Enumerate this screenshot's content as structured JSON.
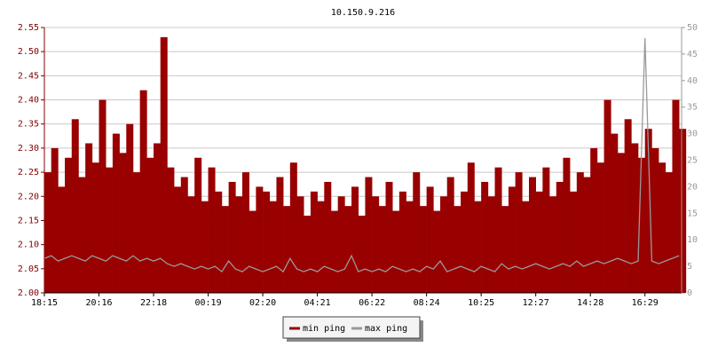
{
  "chart_data": {
    "type": "bar",
    "title": "10.150.9.216",
    "categories": [
      "18:15",
      null,
      null,
      null,
      null,
      null,
      null,
      null,
      "20:16",
      null,
      null,
      null,
      null,
      null,
      null,
      null,
      "22:18",
      null,
      null,
      null,
      null,
      null,
      null,
      null,
      "00:19",
      null,
      null,
      null,
      null,
      null,
      null,
      null,
      "02:20",
      null,
      null,
      null,
      null,
      null,
      null,
      null,
      "04:21",
      null,
      null,
      null,
      null,
      null,
      null,
      null,
      "06:22",
      null,
      null,
      null,
      null,
      null,
      null,
      null,
      "08:24",
      null,
      null,
      null,
      null,
      null,
      null,
      null,
      "10:25",
      null,
      null,
      null,
      null,
      null,
      null,
      null,
      "12:27",
      null,
      null,
      null,
      null,
      null,
      null,
      null,
      "14:28",
      null,
      null,
      null,
      null,
      null,
      null,
      null,
      "16:29",
      null,
      null,
      null,
      null,
      null
    ],
    "series": [
      {
        "name": "min ping",
        "color": "#990000",
        "axis": "y",
        "values": [
          2.25,
          2.3,
          2.22,
          2.28,
          2.36,
          2.24,
          2.31,
          2.27,
          2.4,
          2.26,
          2.33,
          2.29,
          2.35,
          2.25,
          2.42,
          2.28,
          2.31,
          2.53,
          2.26,
          2.22,
          2.24,
          2.2,
          2.28,
          2.19,
          2.26,
          2.21,
          2.18,
          2.23,
          2.2,
          2.25,
          2.17,
          2.22,
          2.21,
          2.19,
          2.24,
          2.18,
          2.27,
          2.2,
          2.16,
          2.21,
          2.19,
          2.23,
          2.17,
          2.2,
          2.18,
          2.22,
          2.16,
          2.24,
          2.2,
          2.18,
          2.23,
          2.17,
          2.21,
          2.19,
          2.25,
          2.18,
          2.22,
          2.17,
          2.2,
          2.24,
          2.18,
          2.21,
          2.27,
          2.19,
          2.23,
          2.2,
          2.26,
          2.18,
          2.22,
          2.25,
          2.19,
          2.24,
          2.21,
          2.26,
          2.2,
          2.23,
          2.28,
          2.21,
          2.25,
          2.24,
          2.3,
          2.27,
          2.4,
          2.33,
          2.29,
          2.36,
          2.31,
          2.28,
          2.34,
          2.3,
          2.27,
          2.25,
          2.4,
          2.34
        ]
      },
      {
        "name": "max ping",
        "color": "#999999",
        "axis": "y2",
        "values": [
          6.5,
          7,
          6,
          6.5,
          7,
          6.5,
          6,
          7,
          6.5,
          6,
          7,
          6.5,
          6,
          7,
          6,
          6.5,
          6,
          6.5,
          5.5,
          5,
          5.5,
          5,
          4.5,
          5,
          4.5,
          5,
          4,
          6,
          4.5,
          4,
          5,
          4.5,
          4,
          4.5,
          5,
          4,
          6.5,
          4.5,
          4,
          4.5,
          4,
          5,
          4.5,
          4,
          4.5,
          7,
          4,
          4.5,
          4,
          4.5,
          4,
          5,
          4.5,
          4,
          4.5,
          4,
          5,
          4.5,
          6,
          4,
          4.5,
          5,
          4.5,
          4,
          5,
          4.5,
          4,
          5.5,
          4.5,
          5,
          4.5,
          5,
          5.5,
          5,
          4.5,
          5,
          5.5,
          5,
          6,
          5,
          5.5,
          6,
          5.5,
          6,
          6.5,
          6,
          5.5,
          6,
          48,
          6,
          5.5,
          6,
          6.5,
          7
        ]
      }
    ],
    "ylim": [
      2.0,
      2.55
    ],
    "yticks": [
      {
        "value": 2.0,
        "label": "2.00"
      },
      2.05,
      {
        "value": 2.1,
        "label": "2.10"
      },
      2.15,
      {
        "value": 2.2,
        "label": "2.20"
      },
      2.25,
      {
        "value": 2.3,
        "label": "2.30"
      },
      2.35,
      {
        "value": 2.4,
        "label": "2.40"
      },
      2.45,
      {
        "value": 2.5,
        "label": "2.50"
      },
      2.55
    ],
    "y2lim": [
      0,
      50
    ],
    "y2ticks": [
      0,
      5,
      10,
      15,
      20,
      25,
      30,
      35,
      40,
      45,
      50
    ],
    "grid": true
  }
}
